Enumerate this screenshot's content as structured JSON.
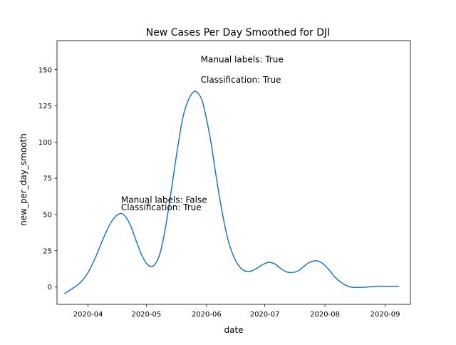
{
  "chart_data": {
    "type": "line",
    "title": "New Cases Per Day Smoothed for DJI",
    "xlabel": "date",
    "ylabel": "new_per_day_smooth",
    "xlim": [
      "2020-03-16",
      "2020-09-14"
    ],
    "ylim": [
      -12,
      170
    ],
    "x_ticks": [
      "2020-04-01",
      "2020-05-01",
      "2020-06-01",
      "2020-07-01",
      "2020-08-01",
      "2020-09-01"
    ],
    "x_tick_labels": [
      "2020-04",
      "2020-05",
      "2020-06",
      "2020-07",
      "2020-08",
      "2020-09"
    ],
    "y_ticks": [
      0,
      25,
      50,
      75,
      100,
      125,
      150
    ],
    "y_tick_labels": [
      "0",
      "25",
      "50",
      "75",
      "100",
      "125",
      "150"
    ],
    "grid": false,
    "color": "#1f77b4",
    "series": [
      {
        "x": [
          "2020-03-20",
          "2020-03-24",
          "2020-03-28",
          "2020-04-01",
          "2020-04-05",
          "2020-04-09",
          "2020-04-13",
          "2020-04-17",
          "2020-04-20",
          "2020-04-23",
          "2020-04-26",
          "2020-04-29",
          "2020-05-02",
          "2020-05-05",
          "2020-05-08",
          "2020-05-11",
          "2020-05-14",
          "2020-05-17",
          "2020-05-20",
          "2020-05-23",
          "2020-05-26",
          "2020-05-29",
          "2020-05-31",
          "2020-06-03",
          "2020-06-06",
          "2020-06-09",
          "2020-06-12",
          "2020-06-15",
          "2020-06-18",
          "2020-06-21",
          "2020-06-24",
          "2020-06-27",
          "2020-06-30",
          "2020-07-03",
          "2020-07-06",
          "2020-07-09",
          "2020-07-12",
          "2020-07-15",
          "2020-07-18",
          "2020-07-21",
          "2020-07-24",
          "2020-07-28",
          "2020-07-31",
          "2020-08-03",
          "2020-08-06",
          "2020-08-09",
          "2020-08-12",
          "2020-08-15",
          "2020-08-19",
          "2020-08-23",
          "2020-08-27",
          "2020-08-31",
          "2020-09-04",
          "2020-09-08"
        ],
        "y": [
          -4.5,
          -1,
          3,
          10,
          21,
          34,
          45,
          50.5,
          49,
          42,
          31,
          21,
          15,
          15,
          23,
          42,
          68,
          95,
          118,
          130,
          135,
          131,
          122,
          102,
          76,
          52,
          33,
          21,
          14,
          11,
          11,
          13,
          15.5,
          17,
          16,
          13,
          10.5,
          10,
          11,
          14,
          17,
          18,
          16,
          12,
          7,
          3.5,
          1,
          -0.2,
          -0.3,
          0,
          0.5,
          0.5,
          0.5,
          0.5
        ]
      }
    ],
    "annotations": [
      {
        "text": "Manual labels: True",
        "x": "2020-05-29",
        "y": 155
      },
      {
        "text": "Classification: True",
        "x": "2020-05-29",
        "y": 141
      },
      {
        "text": "Manual labels: False",
        "x": "2020-04-18",
        "y": 58
      },
      {
        "text": "Classification: True",
        "x": "2020-04-18",
        "y": 53
      }
    ]
  }
}
